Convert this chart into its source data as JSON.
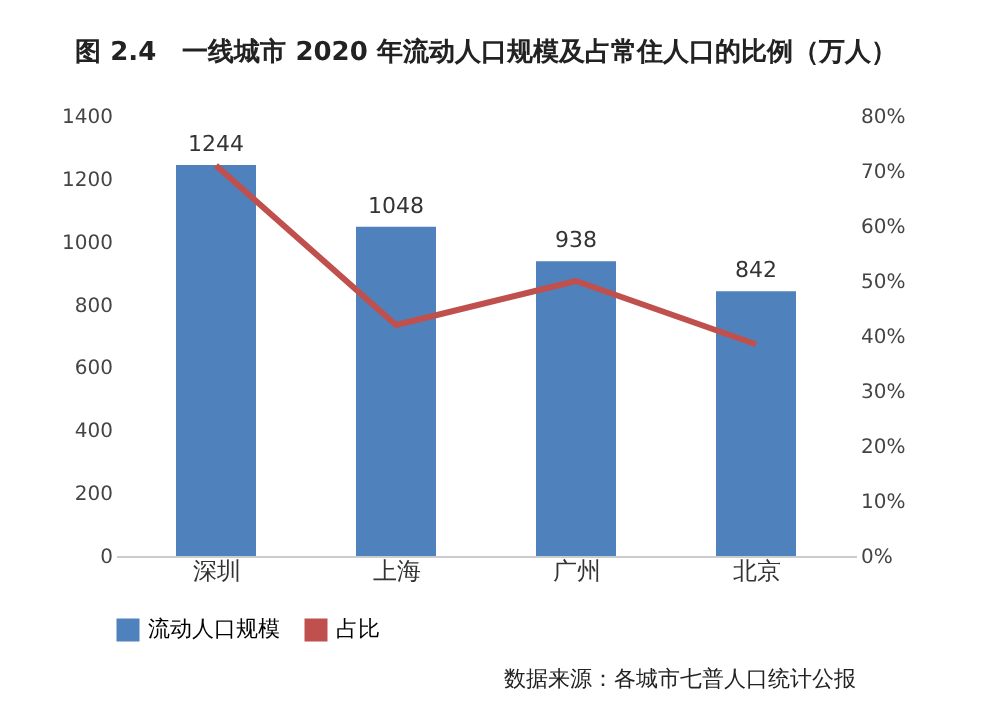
{
  "chart_data": {
    "type": "bar",
    "title": "图 2.4　一线城市 2020 年流动人口规模及占常住人口的比例（万人）",
    "categories": [
      "深圳",
      "上海",
      "广州",
      "北京"
    ],
    "series": [
      {
        "name": "流动人口规模",
        "color": "#4f81bd",
        "values": [
          1244,
          1048,
          938,
          842
        ],
        "value_labels": [
          "1244",
          "1048",
          "938",
          "842"
        ]
      },
      {
        "name": "占比",
        "type": "line",
        "axis": "y2",
        "color": "#c0504d",
        "values": [
          71,
          42,
          50,
          38.5
        ]
      }
    ],
    "ylim": [
      0,
      1400
    ],
    "yticks": [
      0,
      200,
      400,
      600,
      800,
      1000,
      1200,
      1400
    ],
    "y2lim": [
      0,
      80
    ],
    "y2ticks": [
      {
        "value": 0,
        "label": "0%"
      },
      {
        "value": 10,
        "label": "10%"
      },
      {
        "value": 20,
        "label": "20%"
      },
      {
        "value": 30,
        "label": "30%"
      },
      {
        "value": 40,
        "label": "40%"
      },
      {
        "value": 50,
        "label": "50%"
      },
      {
        "value": 60,
        "label": "60%"
      },
      {
        "value": 70,
        "label": "70%"
      },
      {
        "value": 80,
        "label": "80%"
      }
    ],
    "legend": "bottom",
    "grid": false,
    "marker": "none",
    "line_style": "solid",
    "annotations": [
      "数据来源：各城市七普人口统计公报"
    ]
  }
}
